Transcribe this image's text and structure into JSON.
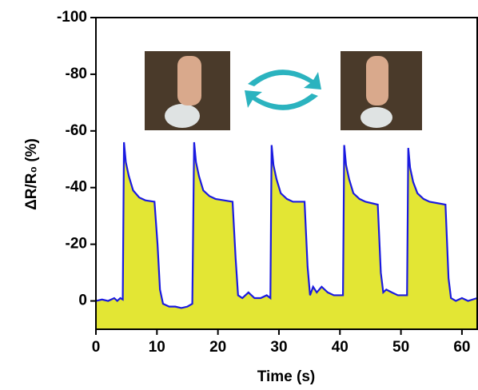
{
  "chart_data": {
    "type": "area",
    "x_label": "Time (s)",
    "y_label": "ΔR/R₀ (%)",
    "xlim": [
      0,
      62.5
    ],
    "ylim": [
      10,
      -100
    ],
    "xticks": [
      0,
      10,
      20,
      30,
      40,
      50,
      60
    ],
    "yticks": [
      -100,
      -80,
      -60,
      -40,
      -20,
      0
    ],
    "line_color": "#1a1ae0",
    "fill_color": "#e3e634",
    "x": [
      0,
      1,
      2,
      3,
      3.5,
      4,
      4.4,
      4.6,
      4.9,
      5.4,
      6.1,
      7.1,
      8.1,
      9.6,
      10.1,
      10.5,
      11,
      12,
      13,
      14,
      15,
      15.8,
      16.1,
      16.4,
      16.9,
      17.6,
      18.6,
      19.6,
      22.4,
      22.9,
      23.3,
      24,
      25,
      26,
      27,
      28,
      28.6,
      28.8,
      29.1,
      29.6,
      30.3,
      31.3,
      32.3,
      34.2,
      34.7,
      35.1,
      35.6,
      36.2,
      37,
      38,
      39,
      40.5,
      40.7,
      41,
      41.5,
      42.2,
      43.2,
      44.2,
      46.2,
      46.7,
      47.1,
      47.6,
      48.5,
      49.5,
      51,
      51.2,
      51.5,
      52,
      52.7,
      53.7,
      54.7,
      57.3,
      57.8,
      58.2,
      59,
      60,
      61,
      62.5
    ],
    "values": [
      0,
      -0.5,
      0,
      -1,
      0,
      -1,
      -0.5,
      -56,
      -49,
      -44,
      -39,
      -36.5,
      -35.5,
      -35,
      -20,
      -4,
      1,
      2,
      2,
      2.5,
      2,
      1,
      -56,
      -49,
      -44,
      -39,
      -37,
      -36,
      -35,
      -15,
      -2,
      -1,
      -3,
      -1,
      -1,
      -2,
      -1,
      -55,
      -48,
      -43,
      -38,
      -36,
      -35,
      -35,
      -12,
      -2,
      -5,
      -3,
      -5,
      -3,
      -2,
      -2,
      -55,
      -48,
      -43,
      -38,
      -36,
      -35,
      -34,
      -10,
      -3,
      -4,
      -3,
      -2,
      -2,
      -54,
      -47,
      -42,
      -38,
      -36,
      -35,
      -34,
      -8,
      -1,
      0,
      -1,
      0,
      -1
    ]
  }
}
